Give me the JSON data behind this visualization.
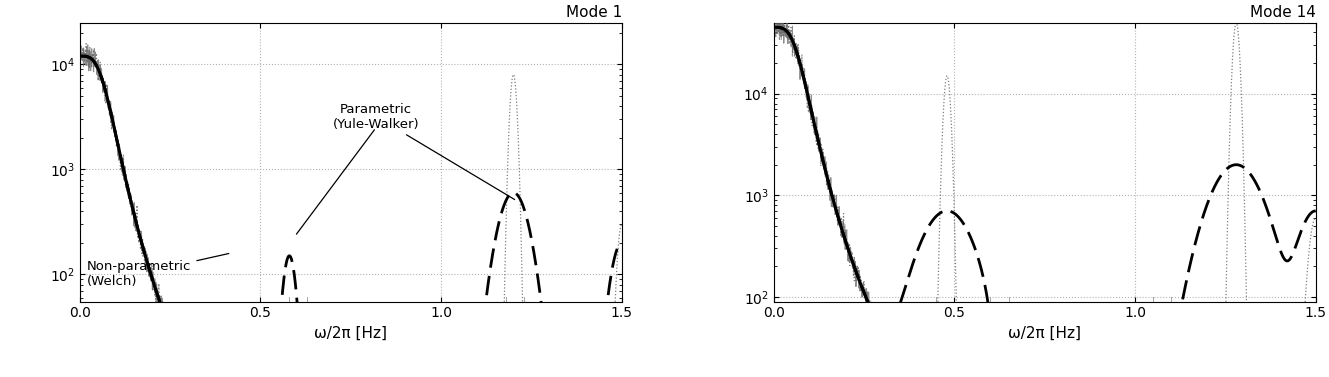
{
  "title1": "Mode 1",
  "title2": "Mode 14",
  "xlabel": "ω/2π [Hz]",
  "xlim": [
    0,
    1.5
  ],
  "ylim1": [
    55,
    25000
  ],
  "ylim2": [
    90,
    50000
  ],
  "yticks1": [
    100,
    1000,
    10000
  ],
  "yticks2": [
    100,
    1000,
    10000
  ],
  "xticks": [
    0,
    0.5,
    1.0,
    1.5
  ],
  "notch_freqs1": [
    0.58,
    0.63,
    1.18,
    1.23
  ],
  "notch_freqs2": [
    0.45,
    0.5,
    0.6,
    0.65,
    1.05,
    1.1
  ],
  "annotation_parametric": "Parametric\n(Yule-Walker)",
  "annotation_nonparametric": "Non-parametric\n(Welch)",
  "background_color": "#ffffff",
  "grid_color": "#aaaaaa"
}
